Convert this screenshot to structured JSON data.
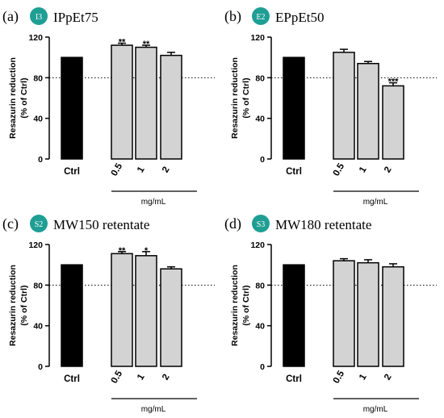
{
  "colors": {
    "control_bar": "#000000",
    "treatment_bar": "#d3d3d3",
    "badge": "#1f9e94",
    "badge_text": "#ffffff",
    "axis": "#000000",
    "reference_line": "#000000"
  },
  "chart_data": [
    {
      "type": "bar",
      "panel_label": "(a)",
      "badge": "I3",
      "title": "IPpEt75",
      "ylabel_line1": "Resazurin reduction",
      "ylabel_line2": "(% of Ctrl)",
      "group_label": "mg/mL",
      "categories": [
        "Ctrl",
        "0.5",
        "1",
        "2"
      ],
      "values": [
        100,
        112,
        110,
        102
      ],
      "errors": [
        0,
        2,
        2,
        3
      ],
      "significance": [
        "",
        "**",
        "**",
        ""
      ],
      "yticks": [
        "0",
        "40",
        "80",
        "120"
      ],
      "ylim": [
        0,
        120
      ],
      "reference_line": 80,
      "grid": false
    },
    {
      "type": "bar",
      "panel_label": "(b)",
      "badge": "E2",
      "title": "EPpEt50",
      "ylabel_line1": "Resazurin reduction",
      "ylabel_line2": "(% of Ctrl)",
      "group_label": "mg/mL",
      "categories": [
        "Ctrl",
        "0.5",
        "1",
        "2"
      ],
      "values": [
        100,
        105,
        94,
        72
      ],
      "errors": [
        0,
        3,
        2,
        3
      ],
      "significance": [
        "",
        "",
        "",
        "***"
      ],
      "yticks": [
        "0",
        "40",
        "80",
        "120"
      ],
      "ylim": [
        0,
        120
      ],
      "reference_line": 80,
      "grid": false
    },
    {
      "type": "bar",
      "panel_label": "(c)",
      "badge": "S2",
      "title": "MW150 retentate",
      "ylabel_line1": "Resazurin reduction",
      "ylabel_line2": "(% of Ctrl)",
      "group_label": "mg/mL",
      "categories": [
        "Ctrl",
        "0.5",
        "1",
        "2"
      ],
      "values": [
        100,
        111,
        109,
        96
      ],
      "errors": [
        0,
        2,
        4,
        2
      ],
      "significance": [
        "",
        "**",
        "*",
        ""
      ],
      "yticks": [
        "0",
        "40",
        "80",
        "120"
      ],
      "ylim": [
        0,
        120
      ],
      "reference_line": 80,
      "grid": false
    },
    {
      "type": "bar",
      "panel_label": "(d)",
      "badge": "S3",
      "title": "MW180 retentate",
      "ylabel_line1": "Resazurin reduction",
      "ylabel_line2": "(% of Ctrl)",
      "group_label": "mg/mL",
      "categories": [
        "Ctrl",
        "0.5",
        "1",
        "2"
      ],
      "values": [
        100,
        104,
        102,
        98
      ],
      "errors": [
        0,
        2,
        3,
        3
      ],
      "significance": [
        "",
        "",
        "",
        ""
      ],
      "yticks": [
        "0",
        "40",
        "80",
        "120"
      ],
      "ylim": [
        0,
        120
      ],
      "reference_line": 80,
      "grid": false
    }
  ]
}
